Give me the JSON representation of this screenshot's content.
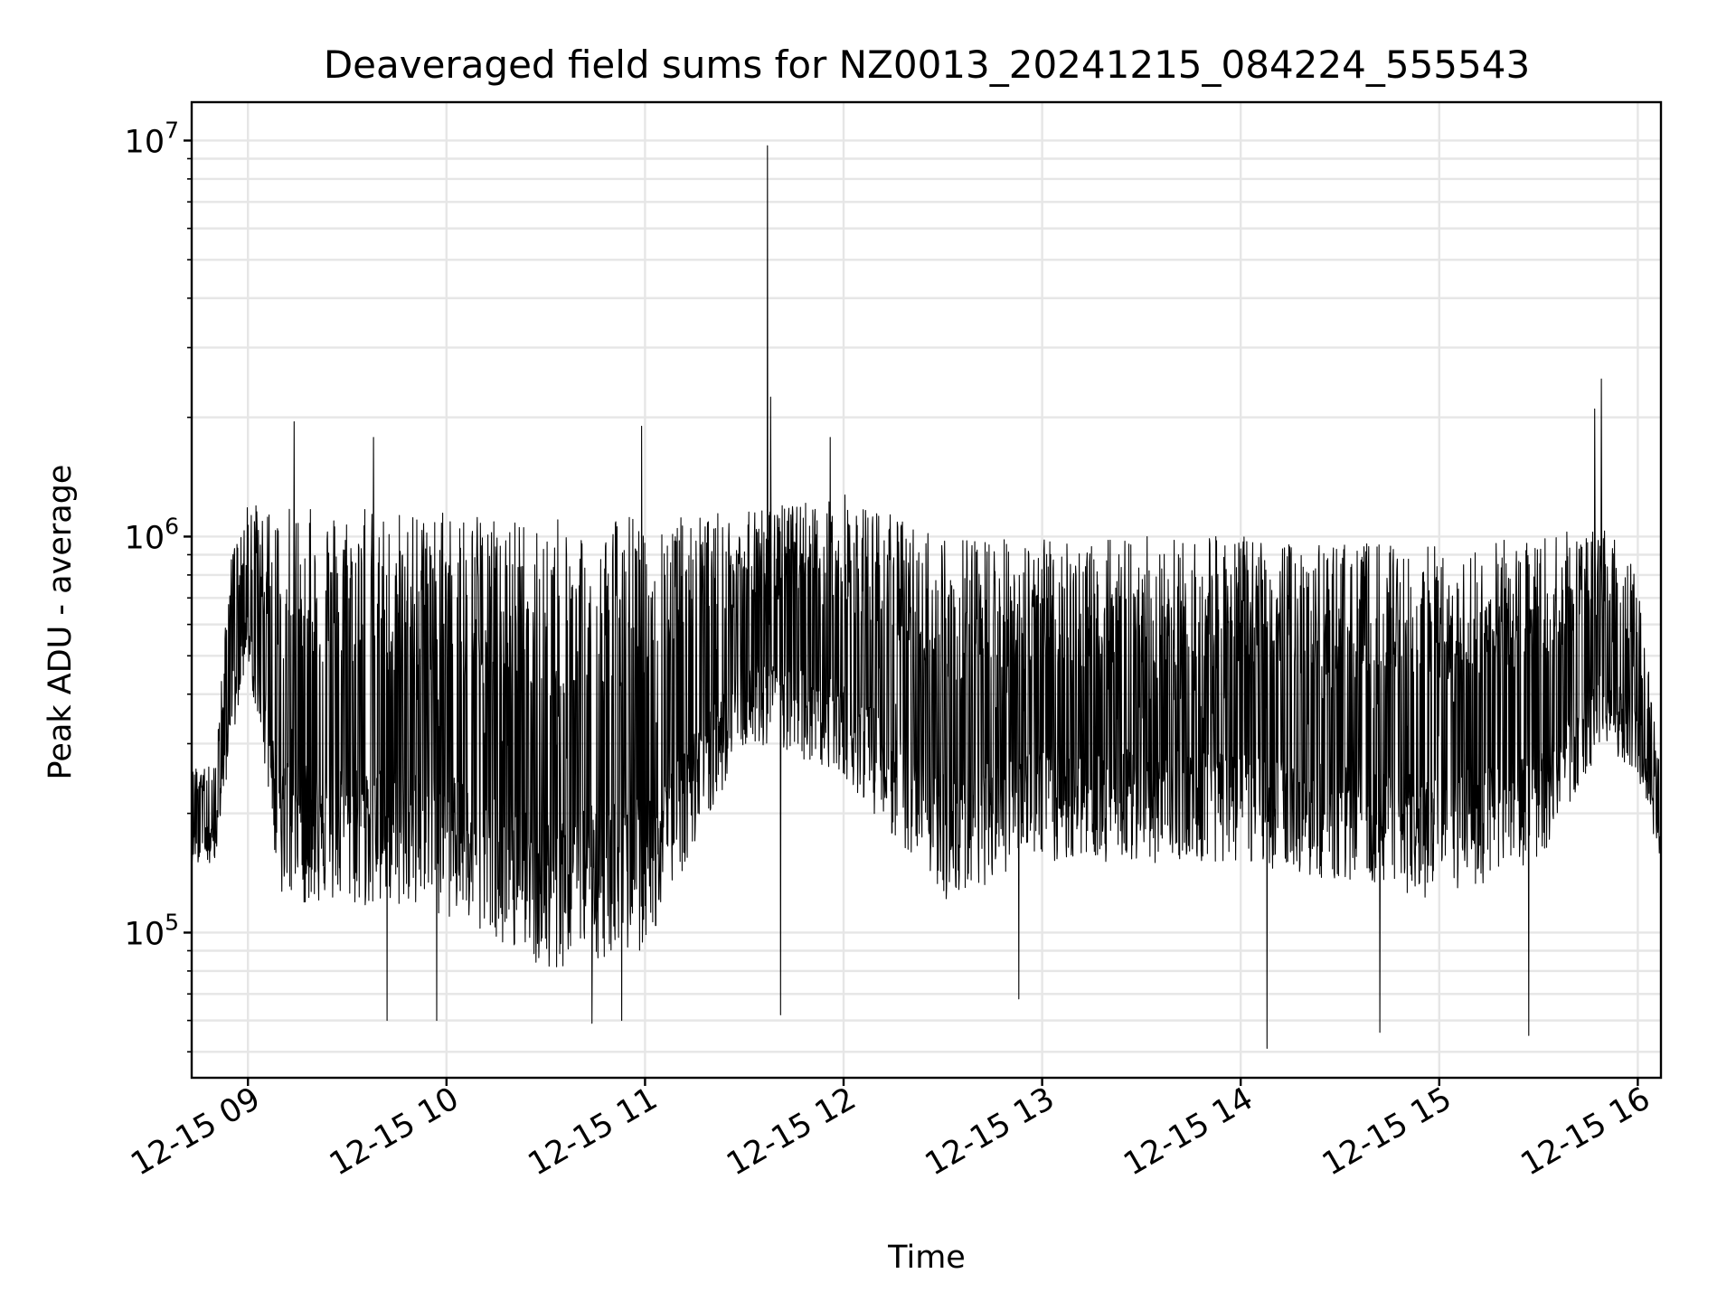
{
  "chart_data": {
    "type": "line",
    "title": "Deaveraged field sums for NZ0013_20241215_084224_555543",
    "xlabel": "Time",
    "ylabel": "Peak ADU - average",
    "x_scale": "time",
    "y_scale": "log",
    "xlim": [
      "2024-12-15 08:43",
      "2024-12-15 16:07"
    ],
    "ylim": [
      43000,
      12500000
    ],
    "x_ticks": [
      "12-15 09",
      "12-15 10",
      "12-15 11",
      "12-15 12",
      "12-15 13",
      "12-15 14",
      "12-15 15",
      "12-15 16"
    ],
    "x_tick_values": [
      "2024-12-15 09:00",
      "2024-12-15 10:00",
      "2024-12-15 11:00",
      "2024-12-15 12:00",
      "2024-12-15 13:00",
      "2024-12-15 14:00",
      "2024-12-15 15:00",
      "2024-12-15 16:00"
    ],
    "y_ticks": [
      {
        "base": "10",
        "exp": "5",
        "value": 100000
      },
      {
        "base": "10",
        "exp": "6",
        "value": 1000000
      },
      {
        "base": "10",
        "exp": "7",
        "value": 10000000
      }
    ],
    "grid": true,
    "series": [
      {
        "color": "#000000",
        "trend": [
          {
            "t": "2024-12-15 08:43",
            "lo": 150000,
            "hi": 260000
          },
          {
            "t": "2024-12-15 08:50",
            "lo": 150000,
            "hi": 280000
          },
          {
            "t": "2024-12-15 08:55",
            "lo": 300000,
            "hi": 900000
          },
          {
            "t": "2024-12-15 09:00",
            "lo": 500000,
            "hi": 1200000
          },
          {
            "t": "2024-12-15 09:10",
            "lo": 120000,
            "hi": 1200000
          },
          {
            "t": "2024-12-15 10:00",
            "lo": 110000,
            "hi": 1150000
          },
          {
            "t": "2024-12-15 10:30",
            "lo": 80000,
            "hi": 1100000
          },
          {
            "t": "2024-12-15 11:00",
            "lo": 90000,
            "hi": 1150000
          },
          {
            "t": "2024-12-15 11:30",
            "lo": 300000,
            "hi": 1150000
          },
          {
            "t": "2024-12-15 12:00",
            "lo": 250000,
            "hi": 1300000
          },
          {
            "t": "2024-12-15 12:30",
            "lo": 120000,
            "hi": 1000000
          },
          {
            "t": "2024-12-15 13:00",
            "lo": 150000,
            "hi": 1000000
          },
          {
            "t": "2024-12-15 14:00",
            "lo": 150000,
            "hi": 1000000
          },
          {
            "t": "2024-12-15 15:00",
            "lo": 120000,
            "hi": 950000
          },
          {
            "t": "2024-12-15 15:30",
            "lo": 150000,
            "hi": 1000000
          },
          {
            "t": "2024-12-15 15:50",
            "lo": 300000,
            "hi": 1100000
          },
          {
            "t": "2024-12-15 16:00",
            "lo": 250000,
            "hi": 800000
          },
          {
            "t": "2024-12-15 16:07",
            "lo": 150000,
            "hi": 250000
          }
        ],
        "peaks": [
          {
            "t": "2024-12-15 09:14",
            "value": 1950000
          },
          {
            "t": "2024-12-15 09:38",
            "value": 1780000
          },
          {
            "t": "2024-12-15 10:59",
            "value": 1900000
          },
          {
            "t": "2024-12-15 11:37",
            "value": 9700000
          },
          {
            "t": "2024-12-15 11:38",
            "value": 2250000
          },
          {
            "t": "2024-12-15 11:56",
            "value": 1780000
          },
          {
            "t": "2024-12-15 15:47",
            "value": 2100000
          },
          {
            "t": "2024-12-15 15:49",
            "value": 2500000
          }
        ],
        "dips": [
          {
            "t": "2024-12-15 09:42",
            "value": 60000
          },
          {
            "t": "2024-12-15 09:57",
            "value": 60000
          },
          {
            "t": "2024-12-15 10:44",
            "value": 59000
          },
          {
            "t": "2024-12-15 10:53",
            "value": 60000
          },
          {
            "t": "2024-12-15 11:41",
            "value": 62000
          },
          {
            "t": "2024-12-15 12:53",
            "value": 68000
          },
          {
            "t": "2024-12-15 14:08",
            "value": 51000
          },
          {
            "t": "2024-12-15 14:42",
            "value": 56000
          },
          {
            "t": "2024-12-15 15:27",
            "value": 55000
          }
        ]
      }
    ]
  }
}
